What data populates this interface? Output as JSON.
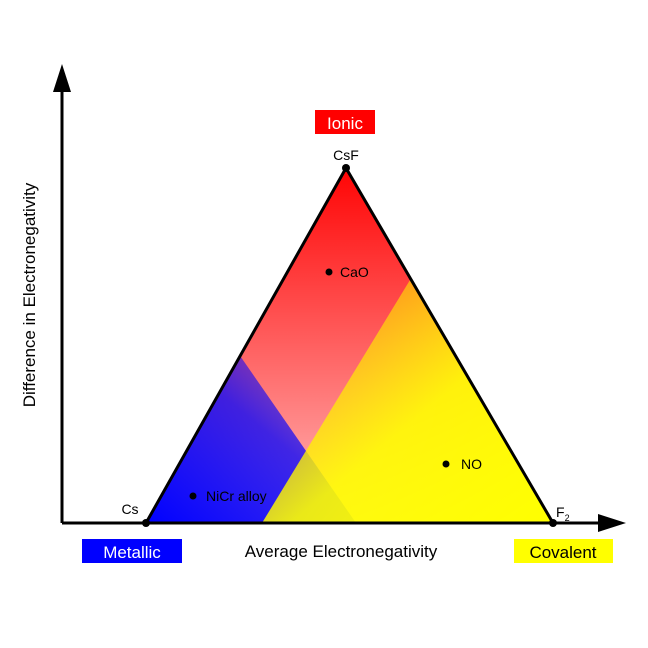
{
  "axes": {
    "x_label": "Average Electronegativity",
    "y_label": "Difference in Electronegativity"
  },
  "regions": {
    "ionic": {
      "label": "Ionic",
      "bg": "#ff0000",
      "fg": "#ffffff"
    },
    "metallic": {
      "label": "Metallic",
      "bg": "#0000ff",
      "fg": "#ffffff"
    },
    "covalent": {
      "label": "Covalent",
      "bg": "#ffff00",
      "fg": "#000000"
    }
  },
  "vertices": {
    "top": "CsF",
    "left": "Cs",
    "right_base": "F",
    "right_sub": "2"
  },
  "points": {
    "cao": "CaO",
    "nicr": "NiCr alloy",
    "no": "NO"
  },
  "colors": {
    "ionic": "#ff0000",
    "metallic": "#0000ff",
    "covalent": "#ffff00",
    "outline": "#000000"
  }
}
